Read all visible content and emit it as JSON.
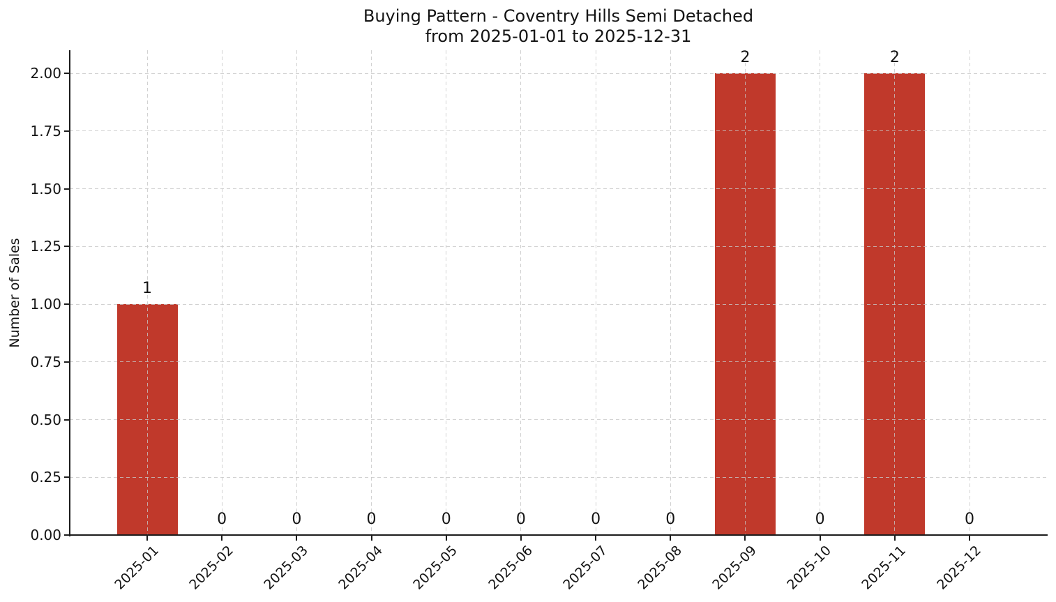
{
  "chart_data": {
    "type": "bar",
    "title": "Buying Pattern - Coventry Hills Semi Detached",
    "subtitle": "from 2025-01-01 to 2025-12-31",
    "xlabel": "",
    "ylabel": "Number of Sales",
    "categories": [
      "2025-01",
      "2025-02",
      "2025-03",
      "2025-04",
      "2025-05",
      "2025-06",
      "2025-07",
      "2025-08",
      "2025-09",
      "2025-10",
      "2025-11",
      "2025-12"
    ],
    "values": [
      1,
      0,
      0,
      0,
      0,
      0,
      0,
      0,
      2,
      0,
      2,
      0
    ],
    "bar_value_labels": [
      "1",
      "0",
      "0",
      "0",
      "0",
      "0",
      "0",
      "0",
      "2",
      "0",
      "2",
      "0"
    ],
    "ylim": [
      0,
      2.1
    ],
    "ytick_values": [
      0,
      0.25,
      0.5,
      0.75,
      1.0,
      1.25,
      1.5,
      1.75,
      2.0
    ],
    "ytick_labels": [
      "0.00",
      "0.25",
      "0.50",
      "0.75",
      "1.00",
      "1.25",
      "1.50",
      "1.75",
      "2.00"
    ],
    "bar_color": "#c0392b",
    "grid_style": "dashed",
    "grid_on": true,
    "legend_position": "none",
    "x_tick_rotation_deg": 45
  }
}
